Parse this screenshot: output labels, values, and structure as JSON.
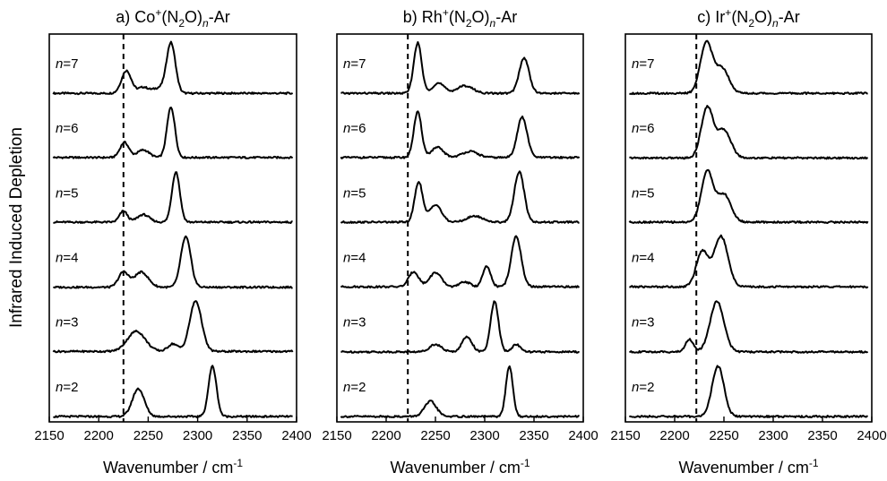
{
  "ylabel": "Infrared Induced Depletion",
  "chart_data": [
    {
      "type": "line",
      "title_prefix": "a) Co",
      "title_sup": "+",
      "title_mid": "(N",
      "title_sub": "2",
      "title_mid2": "O)",
      "title_subn": "n",
      "title_suffix": "-Ar",
      "xlabel_main": "Wavenumber / cm",
      "xlabel_sup": "-1",
      "xlim": [
        2150,
        2400
      ],
      "xticks": [
        2150,
        2200,
        2250,
        2300,
        2350,
        2400
      ],
      "dashed_line_x": 2225,
      "series": [
        {
          "label_n": "n",
          "label_rest": "=7",
          "peaks": [
            [
              2228,
              0.45,
              5
            ],
            [
              2245,
              0.12,
              5
            ],
            [
              2260,
              0.1,
              6
            ],
            [
              2273,
              1.0,
              4.5
            ]
          ],
          "baseline": 0.0
        },
        {
          "label_n": "n",
          "label_rest": "=6",
          "peaks": [
            [
              2226,
              0.3,
              4.5
            ],
            [
              2245,
              0.15,
              6
            ],
            [
              2273,
              1.0,
              4
            ]
          ],
          "baseline": 0.05
        },
        {
          "label_n": "n",
          "label_rest": "=5",
          "peaks": [
            [
              2225,
              0.22,
              4
            ],
            [
              2245,
              0.15,
              6
            ],
            [
              2278,
              1.0,
              4
            ]
          ],
          "baseline": 0.05
        },
        {
          "label_n": "n",
          "label_rest": "=4",
          "peaks": [
            [
              2225,
              0.3,
              5
            ],
            [
              2243,
              0.3,
              7
            ],
            [
              2288,
              1.0,
              5
            ]
          ],
          "baseline": 0.0
        },
        {
          "label_n": "n",
          "label_rest": "=3",
          "peaks": [
            [
              2238,
              0.4,
              9
            ],
            [
              2275,
              0.15,
              5
            ],
            [
              2298,
              1.0,
              6
            ]
          ],
          "baseline": 0.05
        },
        {
          "label_n": "n",
          "label_rest": "=2",
          "peaks": [
            [
              2240,
              0.55,
              6
            ],
            [
              2315,
              1.0,
              4
            ]
          ],
          "baseline": 0.0
        }
      ]
    },
    {
      "type": "line",
      "title_prefix": "b) Rh",
      "title_sup": "+",
      "title_mid": "(N",
      "title_sub": "2",
      "title_mid2": "O)",
      "title_subn": "n",
      "title_suffix": "-Ar",
      "xlabel_main": "Wavenumber / cm",
      "xlabel_sup": "-1",
      "xlim": [
        2150,
        2400
      ],
      "xticks": [
        2150,
        2200,
        2250,
        2300,
        2350,
        2400
      ],
      "dashed_line_x": 2222,
      "series": [
        {
          "label_n": "n",
          "label_rest": "=7",
          "peaks": [
            [
              2232,
              1.0,
              4
            ],
            [
              2253,
              0.2,
              6
            ],
            [
              2280,
              0.15,
              8
            ],
            [
              2340,
              0.7,
              5
            ]
          ],
          "baseline": 0.0
        },
        {
          "label_n": "n",
          "label_rest": "=6",
          "peaks": [
            [
              2232,
              0.9,
              4
            ],
            [
              2252,
              0.2,
              6
            ],
            [
              2285,
              0.12,
              8
            ],
            [
              2338,
              0.8,
              5
            ]
          ],
          "baseline": 0.05
        },
        {
          "label_n": "n",
          "label_rest": "=5",
          "peaks": [
            [
              2233,
              0.8,
              4
            ],
            [
              2250,
              0.35,
              6
            ],
            [
              2290,
              0.12,
              8
            ],
            [
              2335,
              1.0,
              5
            ]
          ],
          "baseline": 0.05
        },
        {
          "label_n": "n",
          "label_rest": "=4",
          "peaks": [
            [
              2228,
              0.3,
              5
            ],
            [
              2250,
              0.28,
              6
            ],
            [
              2280,
              0.1,
              5
            ],
            [
              2302,
              0.4,
              4
            ],
            [
              2332,
              1.0,
              5
            ]
          ],
          "baseline": 0.05
        },
        {
          "label_n": "n",
          "label_rest": "=3",
          "peaks": [
            [
              2250,
              0.15,
              6
            ],
            [
              2282,
              0.3,
              5
            ],
            [
              2310,
              1.0,
              4
            ],
            [
              2332,
              0.15,
              4
            ]
          ],
          "baseline": 0.0
        },
        {
          "label_n": "n",
          "label_rest": "=2",
          "peaks": [
            [
              2245,
              0.3,
              6
            ],
            [
              2325,
              1.0,
              3.5
            ]
          ],
          "baseline": 0.0
        }
      ]
    },
    {
      "type": "line",
      "title_prefix": "c) Ir",
      "title_sup": "+",
      "title_mid": "(N",
      "title_sub": "2",
      "title_mid2": "O)",
      "title_subn": "n",
      "title_suffix": "-Ar",
      "xlabel_main": "Wavenumber / cm",
      "xlabel_sup": "-1",
      "xlim": [
        2150,
        2400
      ],
      "xticks": [
        2150,
        2200,
        2250,
        2300,
        2350,
        2400
      ],
      "dashed_line_x": 2222,
      "series": [
        {
          "label_n": "n",
          "label_rest": "=7",
          "peaks": [
            [
              2232,
              1.0,
              6
            ],
            [
              2248,
              0.5,
              7
            ]
          ],
          "baseline": 0.0
        },
        {
          "label_n": "n",
          "label_rest": "=6",
          "peaks": [
            [
              2233,
              1.0,
              6
            ],
            [
              2250,
              0.55,
              7
            ]
          ],
          "baseline": 0.0
        },
        {
          "label_n": "n",
          "label_rest": "=5",
          "peaks": [
            [
              2233,
              1.0,
              6
            ],
            [
              2250,
              0.55,
              7
            ]
          ],
          "baseline": 0.05
        },
        {
          "label_n": "n",
          "label_rest": "=4",
          "peaks": [
            [
              2228,
              0.7,
              6
            ],
            [
              2247,
              1.0,
              7
            ]
          ],
          "baseline": 0.05
        },
        {
          "label_n": "n",
          "label_rest": "=3",
          "peaks": [
            [
              2215,
              0.25,
              4
            ],
            [
              2243,
              1.0,
              7
            ]
          ],
          "baseline": 0.0
        },
        {
          "label_n": "n",
          "label_rest": "=2",
          "peaks": [
            [
              2244,
              1.0,
              6
            ]
          ],
          "baseline": 0.0
        }
      ]
    }
  ]
}
